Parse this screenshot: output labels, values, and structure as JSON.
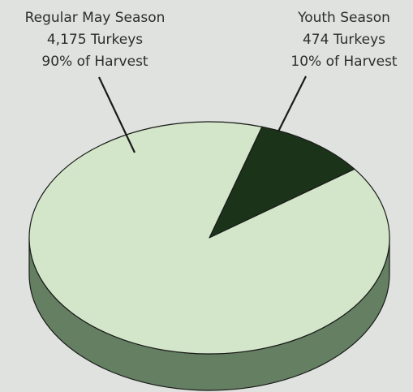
{
  "chart_data": {
    "type": "pie",
    "style": "3d",
    "title": "",
    "slices": [
      {
        "name": "Regular May Season",
        "value": 4175,
        "percent": 90,
        "label_lines": [
          "Regular May Season",
          "4,175 Turkeys",
          "90% of Harvest"
        ],
        "color": "#d3e6c9",
        "side_color": "#647f61"
      },
      {
        "name": "Youth Season",
        "value": 474,
        "percent": 10,
        "label_lines": [
          "Youth Season",
          "474 Turkeys",
          "10% of Harvest"
        ],
        "color": "#1b3319",
        "side_color": "#0f1f0e"
      }
    ],
    "legend": "none"
  },
  "colors": {
    "background": "#dfe2de",
    "outline": "#1a1a1a",
    "text": "#2d2d2d"
  }
}
